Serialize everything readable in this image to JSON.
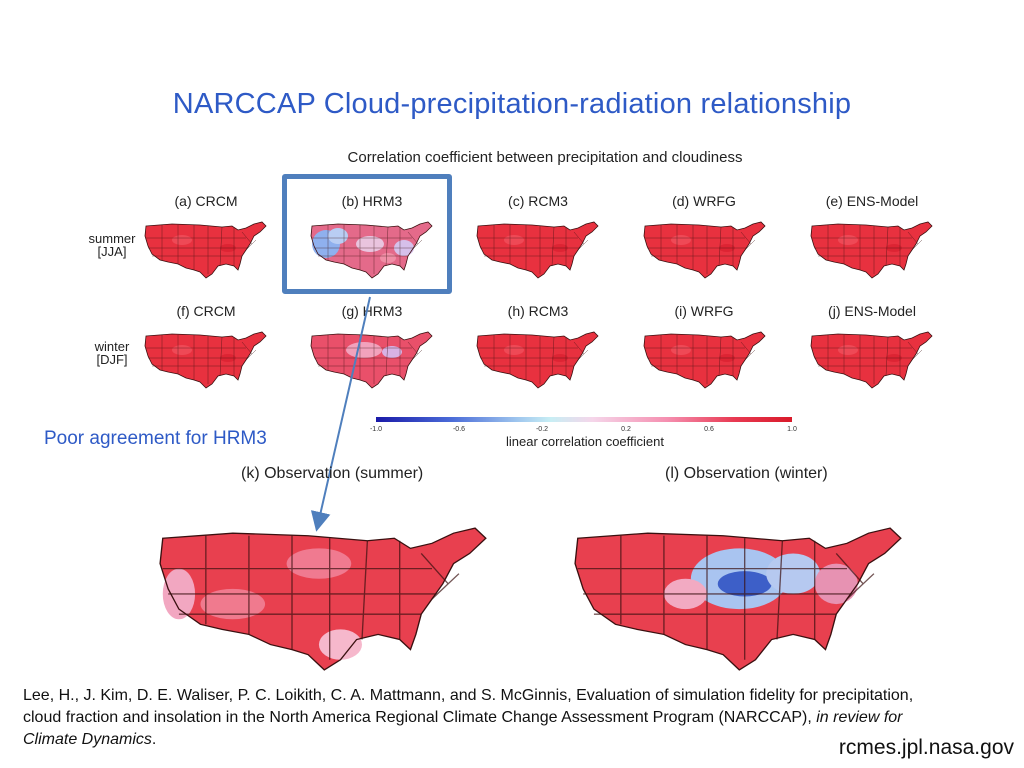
{
  "slide": {
    "title": "NARCCAP Cloud-precipitation-radiation relationship",
    "figure_title": "Correlation coefficient between precipitation and cloudiness",
    "rows": [
      {
        "label_line1": "summer",
        "label_line2": "[JJA]"
      },
      {
        "label_line1": "winter",
        "label_line2": "[DJF]"
      }
    ],
    "panels_summer": [
      {
        "label": "(a) CRCM",
        "tone": "red"
      },
      {
        "label": "(b) HRM3",
        "tone": "mixed"
      },
      {
        "label": "(c) RCM3",
        "tone": "red"
      },
      {
        "label": "(d) WRFG",
        "tone": "red"
      },
      {
        "label": "(e) ENS-Model",
        "tone": "red"
      }
    ],
    "panels_winter": [
      {
        "label": "(f) CRCM",
        "tone": "red"
      },
      {
        "label": "(g) HRM3",
        "tone": "pinkish"
      },
      {
        "label": "(h) RCM3",
        "tone": "red"
      },
      {
        "label": "(i) WRFG",
        "tone": "red"
      },
      {
        "label": "(j) ENS-Model",
        "tone": "red"
      }
    ],
    "colorbar": {
      "ticks": [
        "-1.0",
        "-0.6",
        "-0.2",
        "0.2",
        "0.6",
        "1.0"
      ],
      "label": "linear correlation coefficient"
    },
    "annotation": "Poor agreement for HRM3",
    "observations": [
      {
        "label": "(k) Observation (summer)"
      },
      {
        "label": "(l) Observation (winter)"
      }
    ],
    "citation": {
      "authors_text": "Lee, H., J. Kim, D. E. Waliser, P. C. Loikith, C. A. Mattmann, and S. McGinnis, Evaluation of simulation fidelity for precipitation, cloud fraction and insolation in the North America Regional Climate Change Assessment Program (NARCCAP), ",
      "journal": "in review for Climate Dynamics",
      "end": "."
    },
    "url": "rcmes.jpl.nasa.gov"
  },
  "colors": {
    "title_blue": "#2e5ac6",
    "box_blue": "#4f7fbd",
    "map_red": "#e8313f",
    "map_light_blue": "#a9c4f0"
  }
}
